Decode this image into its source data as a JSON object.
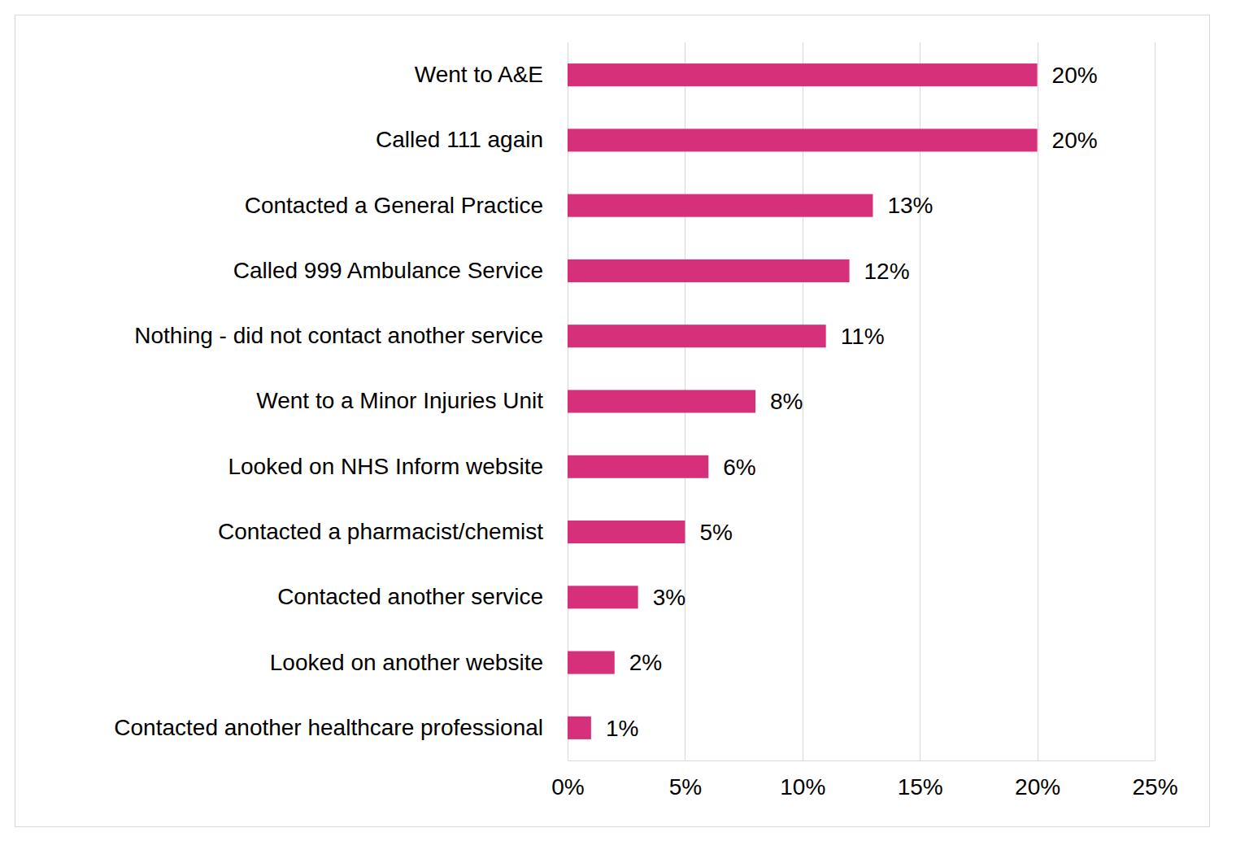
{
  "chart_data": {
    "type": "bar",
    "orientation": "horizontal",
    "categories": [
      "Went to A&E",
      "Called 111 again",
      "Contacted a General Practice",
      "Called 999 Ambulance Service",
      "Nothing - did not contact another service",
      "Went to a Minor Injuries Unit",
      "Looked on NHS Inform website",
      "Contacted a pharmacist/chemist",
      "Contacted another service",
      "Looked on another website",
      "Contacted another healthcare professional"
    ],
    "values": [
      20,
      20,
      13,
      12,
      11,
      8,
      6,
      5,
      3,
      2,
      1
    ],
    "value_labels": [
      "20%",
      "20%",
      "13%",
      "12%",
      "11%",
      "8%",
      "6%",
      "5%",
      "3%",
      "2%",
      "1%"
    ],
    "data_labels": true,
    "color": "#d6307a",
    "xlim": [
      0,
      25
    ],
    "xticks": [
      {
        "value": 0,
        "label": "0%"
      },
      {
        "value": 5,
        "label": "5%"
      },
      {
        "value": 10,
        "label": "10%"
      },
      {
        "value": 15,
        "label": "15%"
      },
      {
        "value": 20,
        "label": "20%"
      },
      {
        "value": 25,
        "label": "25%"
      }
    ],
    "grid": true
  }
}
